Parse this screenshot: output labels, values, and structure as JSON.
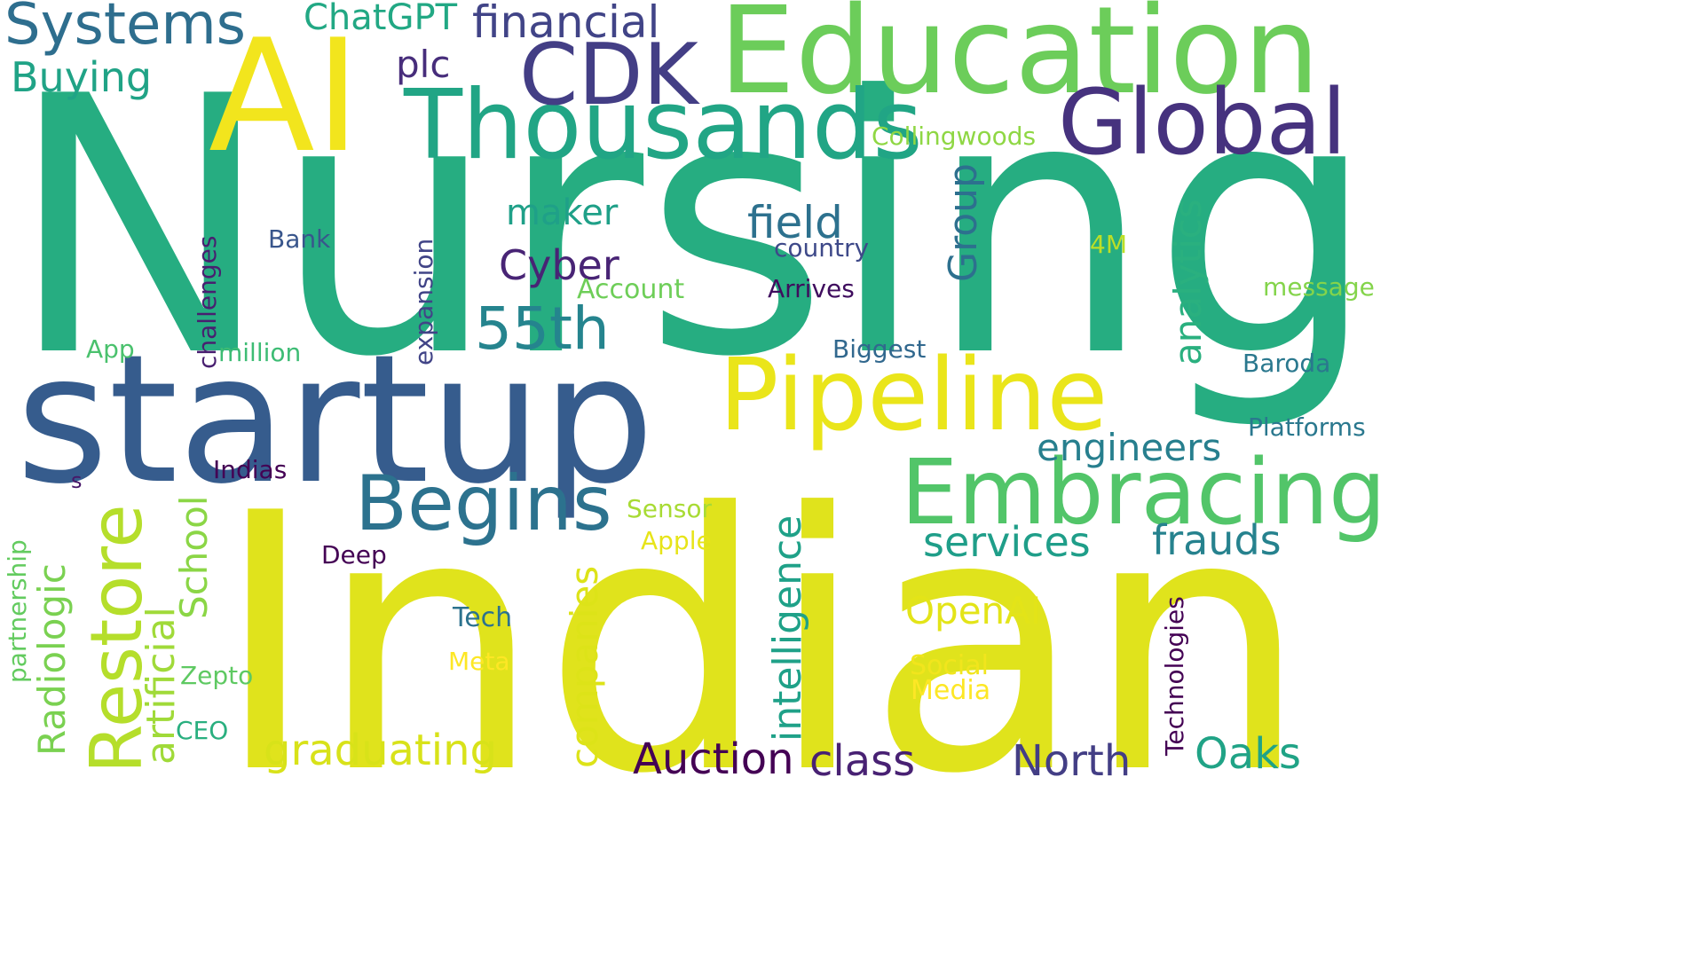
{
  "words": [
    {
      "text": "Nursing",
      "color": "#26ad81",
      "vertical": false
    },
    {
      "text": "Indian",
      "color": "#e0e31c",
      "vertical": false
    },
    {
      "text": "startup",
      "color": "#365c8d",
      "vertical": false
    },
    {
      "text": "Education",
      "color": "#6ccd5a",
      "vertical": false
    },
    {
      "text": "AI",
      "color": "#f2e51d",
      "vertical": false
    },
    {
      "text": "Thousands",
      "color": "#21a585",
      "vertical": false
    },
    {
      "text": "CDK",
      "color": "#433e85",
      "vertical": false
    },
    {
      "text": "Global",
      "color": "#46327e",
      "vertical": false
    },
    {
      "text": "Pipeline",
      "color": "#eae51a",
      "vertical": false
    },
    {
      "text": "Embracing",
      "color": "#52c569",
      "vertical": false
    },
    {
      "text": "Begins",
      "color": "#2c728e",
      "vertical": false
    },
    {
      "text": "Systems",
      "color": "#2e6e8e",
      "vertical": false
    },
    {
      "text": "Restore",
      "color": "#b5de2b",
      "vertical": true
    },
    {
      "text": "55th",
      "color": "#25848e",
      "vertical": false
    },
    {
      "text": "financial",
      "color": "#414487",
      "vertical": false
    },
    {
      "text": "ChatGPT",
      "color": "#22a884",
      "vertical": false
    },
    {
      "text": "plc",
      "color": "#472d7b",
      "vertical": false
    },
    {
      "text": "Buying",
      "color": "#20a386",
      "vertical": false
    },
    {
      "text": "Collingwoods",
      "color": "#8fd744",
      "vertical": false
    },
    {
      "text": "Group",
      "color": "#2d708e",
      "vertical": true
    },
    {
      "text": "analytics",
      "color": "#2ab07f",
      "vertical": true
    },
    {
      "text": "maker",
      "color": "#1fa088",
      "vertical": false
    },
    {
      "text": "field",
      "color": "#2d718e",
      "vertical": false
    },
    {
      "text": "Bank",
      "color": "#39568c",
      "vertical": false
    },
    {
      "text": "country",
      "color": "#3e4989",
      "vertical": false
    },
    {
      "text": "4M",
      "color": "#bddf26",
      "vertical": false
    },
    {
      "text": "Cyber",
      "color": "#482475",
      "vertical": false
    },
    {
      "text": "challenges",
      "color": "#481f70",
      "vertical": true
    },
    {
      "text": "expansion",
      "color": "#414487",
      "vertical": true
    },
    {
      "text": "Account",
      "color": "#6ece58",
      "vertical": false
    },
    {
      "text": "Arrives",
      "color": "#3f0d5e",
      "vertical": false
    },
    {
      "text": "message",
      "color": "#84d44b",
      "vertical": false
    },
    {
      "text": "App",
      "color": "#4ac16d",
      "vertical": false
    },
    {
      "text": "million",
      "color": "#3dbc74",
      "vertical": false
    },
    {
      "text": "Biggest",
      "color": "#31688e",
      "vertical": false
    },
    {
      "text": "Baroda",
      "color": "#2a788e",
      "vertical": false
    },
    {
      "text": "Platforms",
      "color": "#2a788e",
      "vertical": false
    },
    {
      "text": "engineers",
      "color": "#277f8e",
      "vertical": false
    },
    {
      "text": "intelligence",
      "color": "#1fa188",
      "vertical": true
    },
    {
      "text": "Indias",
      "color": "#440154",
      "vertical": false
    },
    {
      "text": "s",
      "color": "#481769",
      "vertical": false
    },
    {
      "text": "partnership",
      "color": "#63cb5f",
      "vertical": true
    },
    {
      "text": "Radiologic",
      "color": "#7ad151",
      "vertical": true
    },
    {
      "text": "artificial",
      "color": "#a0da39",
      "vertical": true
    },
    {
      "text": "School",
      "color": "#8bd646",
      "vertical": true
    },
    {
      "text": "companies",
      "color": "#dde318",
      "vertical": true
    },
    {
      "text": "Sensor",
      "color": "#a8db34",
      "vertical": false
    },
    {
      "text": "Apple",
      "color": "#e7e419",
      "vertical": false
    },
    {
      "text": "services",
      "color": "#1f9e89",
      "vertical": false
    },
    {
      "text": "frauds",
      "color": "#26828e",
      "vertical": false
    },
    {
      "text": "Deep",
      "color": "#440154",
      "vertical": false
    },
    {
      "text": "OpenAI",
      "color": "#e3e418",
      "vertical": false
    },
    {
      "text": "Tech",
      "color": "#2c728e",
      "vertical": false
    },
    {
      "text": "Meta",
      "color": "#fde725",
      "vertical": false
    },
    {
      "text": "Social",
      "color": "#f1e51d",
      "vertical": false
    },
    {
      "text": "Media",
      "color": "#fde725",
      "vertical": false
    },
    {
      "text": "Technologies",
      "color": "#440154",
      "vertical": true
    },
    {
      "text": "Zepto",
      "color": "#5ec962",
      "vertical": false
    },
    {
      "text": "CEO",
      "color": "#29af7f",
      "vertical": false
    },
    {
      "text": "graduating",
      "color": "#d8e219",
      "vertical": false
    },
    {
      "text": "Auction",
      "color": "#440154",
      "vertical": false
    },
    {
      "text": "class",
      "color": "#482173",
      "vertical": false
    },
    {
      "text": "North",
      "color": "#433e85",
      "vertical": false
    },
    {
      "text": "Oaks",
      "color": "#20a386",
      "vertical": false
    }
  ]
}
